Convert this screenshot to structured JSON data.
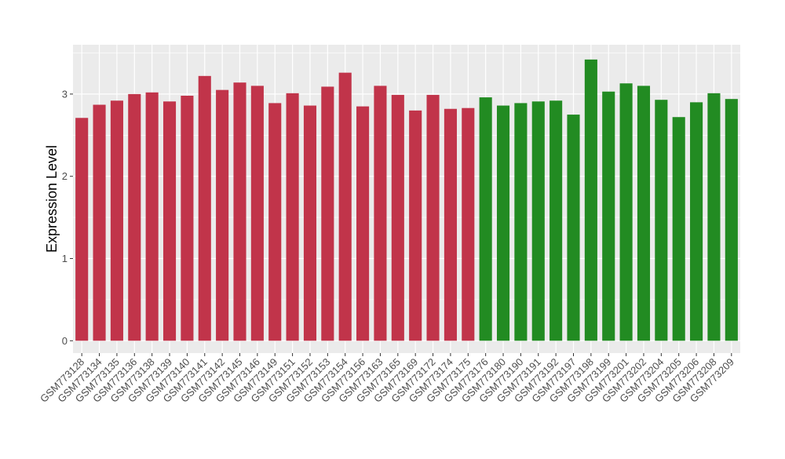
{
  "chart_data": {
    "type": "bar",
    "title": "",
    "xlabel": "",
    "ylabel": "Expression Level",
    "ylim": [
      -0.15,
      3.6
    ],
    "yticks": [
      0,
      1,
      2,
      3
    ],
    "grid": true,
    "legend": "none",
    "panel_background": "#ebebeb",
    "grid_color": "#ffffff",
    "categories": [
      "GSM773128",
      "GSM773134",
      "GSM773135",
      "GSM773136",
      "GSM773138",
      "GSM773139",
      "GSM773140",
      "GSM773141",
      "GSM773142",
      "GSM773145",
      "GSM773146",
      "GSM773149",
      "GSM773151",
      "GSM773152",
      "GSM773153",
      "GSM773154",
      "GSM773156",
      "GSM773163",
      "GSM773165",
      "GSM773169",
      "GSM773172",
      "GSM773174",
      "GSM773175",
      "GSM773176",
      "GSM773180",
      "GSM773190",
      "GSM773191",
      "GSM773192",
      "GSM773197",
      "GSM773198",
      "GSM773199",
      "GSM773201",
      "GSM773202",
      "GSM773204",
      "GSM773205",
      "GSM773206",
      "GSM773208",
      "GSM773209"
    ],
    "values": [
      2.71,
      2.87,
      2.92,
      3.0,
      3.02,
      2.91,
      2.98,
      3.22,
      3.05,
      3.14,
      3.1,
      2.89,
      3.01,
      2.86,
      3.09,
      3.26,
      2.85,
      3.1,
      2.99,
      2.8,
      2.99,
      2.82,
      2.83,
      2.96,
      2.86,
      2.89,
      2.91,
      2.92,
      2.75,
      3.42,
      3.03,
      3.13,
      3.1,
      2.93,
      2.72,
      2.9,
      3.01,
      2.94
    ],
    "colors": [
      "#c1344a",
      "#c1344a",
      "#c1344a",
      "#c1344a",
      "#c1344a",
      "#c1344a",
      "#c1344a",
      "#c1344a",
      "#c1344a",
      "#c1344a",
      "#c1344a",
      "#c1344a",
      "#c1344a",
      "#c1344a",
      "#c1344a",
      "#c1344a",
      "#c1344a",
      "#c1344a",
      "#c1344a",
      "#c1344a",
      "#c1344a",
      "#c1344a",
      "#c1344a",
      "#228b22",
      "#228b22",
      "#228b22",
      "#228b22",
      "#228b22",
      "#228b22",
      "#228b22",
      "#228b22",
      "#228b22",
      "#228b22",
      "#228b22",
      "#228b22",
      "#228b22",
      "#228b22",
      "#228b22"
    ]
  }
}
